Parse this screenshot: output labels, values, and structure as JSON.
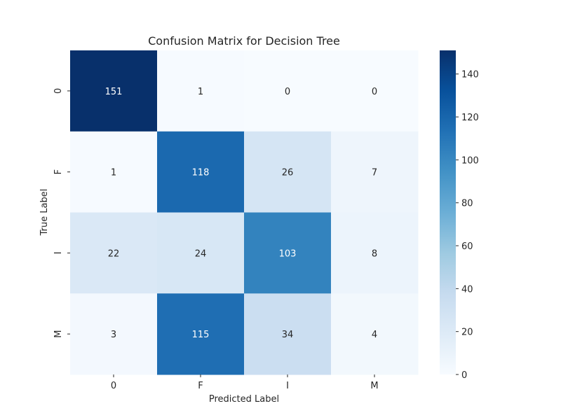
{
  "chart_data": {
    "type": "heatmap",
    "title": "Confusion Matrix for Decision Tree",
    "xlabel": "Predicted Label",
    "ylabel": "True Label",
    "x_categories": [
      "0",
      "F",
      "I",
      "M"
    ],
    "y_categories": [
      "0",
      "F",
      "I",
      "M"
    ],
    "values": [
      [
        151,
        1,
        0,
        0
      ],
      [
        1,
        118,
        26,
        7
      ],
      [
        22,
        24,
        103,
        8
      ],
      [
        3,
        115,
        34,
        4
      ]
    ],
    "colormap": "Blues",
    "color_range": [
      0,
      151
    ],
    "colorbar_ticks": [
      0,
      20,
      40,
      60,
      80,
      100,
      120,
      140
    ],
    "grid": false
  }
}
